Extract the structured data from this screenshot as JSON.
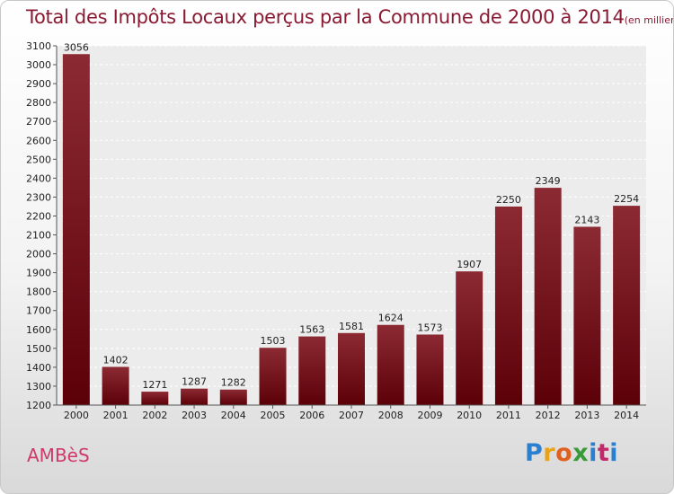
{
  "chart_data": {
    "type": "bar",
    "title": "Total des Impôts Locaux perçus par la Commune de 2000 à 2014",
    "unit": "(en milliers d'€)",
    "categories": [
      "2000",
      "2001",
      "2002",
      "2003",
      "2004",
      "2005",
      "2006",
      "2007",
      "2008",
      "2009",
      "2010",
      "2011",
      "2012",
      "2013",
      "2014"
    ],
    "values": [
      3056,
      1402,
      1271,
      1287,
      1282,
      1503,
      1563,
      1581,
      1624,
      1573,
      1907,
      2250,
      2349,
      2143,
      2254
    ],
    "value_labels": [
      "3056",
      "1402",
      "1271",
      "1287",
      "1282",
      "1503",
      "1563",
      "1581",
      "1624",
      "1573",
      "1907",
      "2250",
      "2349",
      "2143",
      "2254"
    ],
    "yticks": [
      "1200",
      "1300",
      "1400",
      "1500",
      "1600",
      "1700",
      "1800",
      "1900",
      "2000",
      "2100",
      "2200",
      "2300",
      "2400",
      "2500",
      "2600",
      "2700",
      "2800",
      "2900",
      "3000",
      "3100"
    ],
    "ylim": [
      1200,
      3100
    ],
    "xlabel": "",
    "ylabel": "",
    "grid": true,
    "colors": {
      "bar_dark": "#5c0008",
      "bar_light": "#8c2a33",
      "title": "#8a1a32"
    }
  },
  "footer": {
    "commune": "AMBèS",
    "logo": {
      "p": "P",
      "r": "r",
      "o": "o",
      "x": "x",
      "i": "i",
      "t": "t",
      "i2": "i"
    }
  }
}
